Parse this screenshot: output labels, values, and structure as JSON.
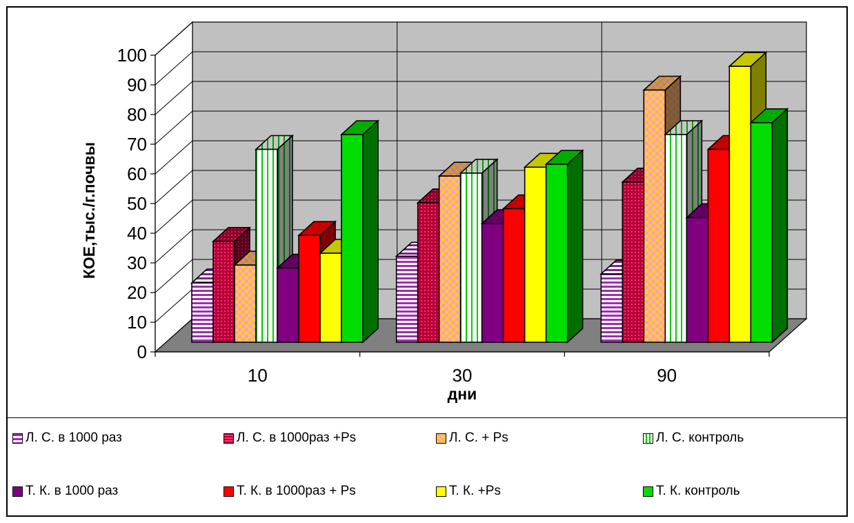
{
  "chart_data": {
    "type": "bar",
    "three_d": true,
    "title": "",
    "xlabel": "дни",
    "ylabel": "КОЕ,тыс./г.почвы",
    "ylim": [
      0,
      100
    ],
    "yticks": [
      "0",
      "10",
      "20",
      "30",
      "40",
      "50",
      "60",
      "70",
      "80",
      "90",
      "100"
    ],
    "grid": true,
    "legend_position": "bottom",
    "categories": [
      "10",
      "30",
      "90"
    ],
    "series": [
      {
        "name": "Л. С. в 1000 раз",
        "values": [
          20,
          29,
          23
        ],
        "color": "#9b2fae",
        "pattern": "h-stripes-white"
      },
      {
        "name": "Л. С. в 1000раз +Ps",
        "values": [
          34,
          47,
          54
        ],
        "color": "#b5003a",
        "pattern": "grid-red"
      },
      {
        "name": "Л. С. + Ps",
        "values": [
          26,
          56,
          85
        ],
        "color": "#ffd21a",
        "pattern": "checker-pink"
      },
      {
        "name": "Л. С. контроль",
        "values": [
          65,
          57,
          70
        ],
        "color": "#ffffff",
        "pattern": "v-stripes-green"
      },
      {
        "name": "Т. К. в 1000 раз",
        "values": [
          25,
          40,
          42
        ],
        "color": "#800080",
        "pattern": "solid"
      },
      {
        "name": "Т. К. в 1000раз + Ps",
        "values": [
          36,
          45,
          65
        ],
        "color": "#ff0000",
        "pattern": "solid"
      },
      {
        "name": "Т. К. +Ps",
        "values": [
          30,
          59,
          93
        ],
        "color": "#ffff00",
        "pattern": "solid"
      },
      {
        "name": "Т. К. контроль",
        "values": [
          70,
          60,
          74
        ],
        "color": "#00dd00",
        "pattern": "solid"
      }
    ]
  }
}
